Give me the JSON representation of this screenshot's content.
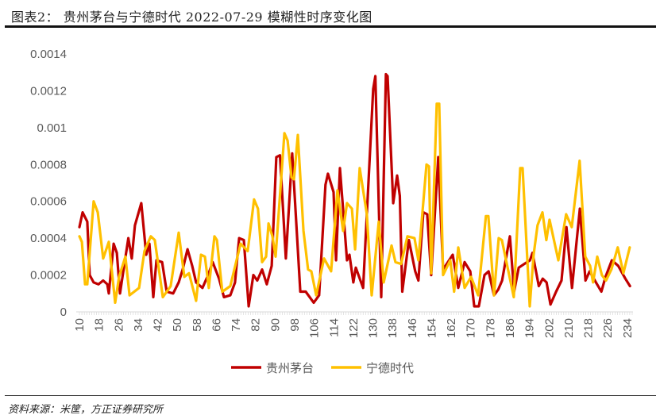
{
  "title": "图表2：  贵州茅台与宁德时代 2022-07-29 模糊性时序变化图",
  "source": "资料来源：米筐，方正证券研究所",
  "chart_data": {
    "type": "line",
    "title": "贵州茅台与宁德时代 2022-07-29 模糊性时序变化图",
    "xlabel": "",
    "ylabel": "",
    "xlim": [
      10,
      236
    ],
    "ylim": [
      0,
      0.0014
    ],
    "yticks": [
      "0",
      "0.0002",
      "0.0004",
      "0.0006",
      "0.0008",
      "0.001",
      "0.0012",
      "0.0014"
    ],
    "yticks_values": [
      0,
      0.0002,
      0.0004,
      0.0006,
      0.0008,
      0.001,
      0.0012,
      0.0014
    ],
    "xticks": [
      10,
      18,
      26,
      34,
      42,
      50,
      58,
      66,
      74,
      82,
      90,
      98,
      106,
      114,
      122,
      130,
      138,
      146,
      154,
      162,
      170,
      178,
      186,
      194,
      202,
      210,
      218,
      226,
      234
    ],
    "grid": false,
    "legend_position": "bottom",
    "series": [
      {
        "name": "贵州茅台",
        "color": "#C00000",
        "points": [
          [
            10,
            0.00046
          ],
          [
            11.3,
            0.00054
          ],
          [
            13.2,
            0.00049
          ],
          [
            14.2,
            0.0002
          ],
          [
            15.8,
            0.00016
          ],
          [
            17.8,
            0.00015
          ],
          [
            19.7,
            0.00017
          ],
          [
            21.4,
            0.00015
          ],
          [
            22,
            0.0001
          ],
          [
            24,
            0.00037
          ],
          [
            25.3,
            0.00032
          ],
          [
            26.6,
            0.0001
          ],
          [
            28.5,
            0.00027
          ],
          [
            30,
            0.0004
          ],
          [
            31.4,
            0.00029
          ],
          [
            32.7,
            0.00047
          ],
          [
            35.3,
            0.00059
          ],
          [
            37.3,
            0.00031
          ],
          [
            38.6,
            0.00037
          ],
          [
            40.2,
            8e-05
          ],
          [
            41.5,
            0.00028
          ],
          [
            43.8,
            0.00027
          ],
          [
            45.7,
            0.00011
          ],
          [
            48.3,
            0.0001
          ],
          [
            50.6,
            0.00016
          ],
          [
            52.2,
            0.00023
          ],
          [
            54.2,
            0.00034
          ],
          [
            56.1,
            0.00025
          ],
          [
            57.7,
            0.00016
          ],
          [
            60.3,
            0.00013
          ],
          [
            62.6,
            0.0002
          ],
          [
            64.5,
            0.00027
          ],
          [
            67.1,
            0.00018
          ],
          [
            69.1,
            8e-05
          ],
          [
            71.7,
            9e-05
          ],
          [
            73.6,
            0.00016
          ],
          [
            75.3,
            0.0004
          ],
          [
            77.2,
            0.00039
          ],
          [
            79.2,
            3e-05
          ],
          [
            81.1,
            0.0002
          ],
          [
            82.7,
            0.00017
          ],
          [
            84.7,
            0.00023
          ],
          [
            86.6,
            0.00015
          ],
          [
            88.6,
            0.00025
          ],
          [
            90.5,
            0.00084
          ],
          [
            92,
            0.00085
          ],
          [
            94.4,
            0.00029
          ],
          [
            97,
            0.00086
          ],
          [
            100.3,
            0.00011
          ],
          [
            102.5,
            0.00011
          ],
          [
            105.8,
            5e-05
          ],
          [
            108,
            9e-05
          ],
          [
            110.6,
            0.00069
          ],
          [
            111.6,
            0.00075
          ],
          [
            113.9,
            0.00065
          ],
          [
            114.9,
            0.00028
          ],
          [
            116.5,
            0.00078
          ],
          [
            119.4,
            0.00028
          ],
          [
            120.4,
            0.00031
          ],
          [
            122,
            0.00016
          ],
          [
            123,
            0.00024
          ],
          [
            126,
            0.00013
          ],
          [
            130.1,
            0.00121
          ],
          [
            131,
            0.00128
          ],
          [
            133.4,
            8e-05
          ],
          [
            135.3,
            0.00129
          ],
          [
            136,
            0.00128
          ],
          [
            138.3,
            0.00059
          ],
          [
            139.9,
            0.00074
          ],
          [
            141,
            0.00063
          ],
          [
            142,
            0.00011
          ],
          [
            144.7,
            0.00039
          ],
          [
            147.3,
            0.00022
          ],
          [
            148.6,
            0.00017
          ],
          [
            150.6,
            0.00054
          ],
          [
            152.2,
            0.00053
          ],
          [
            153.8,
            0.0002
          ],
          [
            156.7,
            0.00084
          ],
          [
            158.7,
            0.00023
          ],
          [
            162.6,
            0.00031
          ],
          [
            164.9,
            0.00013
          ],
          [
            167.5,
            0.00027
          ],
          [
            169.8,
            0.00022
          ],
          [
            171.4,
            3e-05
          ],
          [
            173.3,
            3e-05
          ],
          [
            175.6,
            0.0002
          ],
          [
            177.3,
            0.00022
          ],
          [
            179.5,
            9e-05
          ],
          [
            181.2,
            0.00012
          ],
          [
            182.8,
            0.00017
          ],
          [
            186,
            0.00041
          ],
          [
            187.7,
            0.00011
          ],
          [
            189.6,
            0.00024
          ],
          [
            191.9,
            0.00026
          ],
          [
            194.2,
            0.00028
          ],
          [
            195.2,
            0.00032
          ],
          [
            197.8,
            0.00014
          ],
          [
            199.4,
            0.00018
          ],
          [
            201,
            0.00016
          ],
          [
            202.6,
            4e-05
          ],
          [
            204.9,
            0.00011
          ],
          [
            207.1,
            0.00017
          ],
          [
            209.1,
            0.00046
          ],
          [
            211.4,
            0.00013
          ],
          [
            214.6,
            0.00056
          ],
          [
            216.9,
            0.00017
          ],
          [
            218.6,
            0.00022
          ],
          [
            221.2,
            0.00016
          ],
          [
            223.4,
            0.00011
          ],
          [
            225.1,
            0.00019
          ],
          [
            227.7,
            0.00028
          ],
          [
            230.3,
            0.00025
          ],
          [
            233.2,
            0.00018
          ],
          [
            235.1,
            0.00014
          ]
        ]
      },
      {
        "name": "宁德时代",
        "color": "#FFC000",
        "points": [
          [
            10,
            0.00041
          ],
          [
            11,
            0.00038
          ],
          [
            12.3,
            0.00015
          ],
          [
            13.2,
            0.00015
          ],
          [
            15.8,
            0.0006
          ],
          [
            17.5,
            0.00054
          ],
          [
            19.7,
            0.00029
          ],
          [
            22,
            0.00038
          ],
          [
            24.6,
            5e-05
          ],
          [
            26.2,
            0.00019
          ],
          [
            28.8,
            0.0003
          ],
          [
            30.5,
            9e-05
          ],
          [
            34.4,
            0.00013
          ],
          [
            36.6,
            0.00033
          ],
          [
            39.2,
            0.00041
          ],
          [
            40.8,
            0.00039
          ],
          [
            44.1,
            8e-05
          ],
          [
            47.3,
            0.00014
          ],
          [
            50.6,
            0.00043
          ],
          [
            52.9,
            0.00019
          ],
          [
            54.8,
            0.00021
          ],
          [
            57.7,
            6e-05
          ],
          [
            59.7,
            0.00031
          ],
          [
            61.3,
            0.0003
          ],
          [
            62.9,
            0.00013
          ],
          [
            65.2,
            0.00041
          ],
          [
            66.2,
            0.00039
          ],
          [
            68.4,
            0.00011
          ],
          [
            71.7,
            0.00014
          ],
          [
            75.9,
            0.00037
          ],
          [
            78.8,
            0.00033
          ],
          [
            81.4,
            0.00061
          ],
          [
            83,
            0.00056
          ],
          [
            84.7,
            0.00027
          ],
          [
            86.3,
            0.0003
          ],
          [
            87.3,
            0.00048
          ],
          [
            88.9,
            0.00041
          ],
          [
            90.2,
            0.0003
          ],
          [
            93.8,
            0.00097
          ],
          [
            95.1,
            0.00093
          ],
          [
            96.7,
            0.00073
          ],
          [
            97.7,
            0.00072
          ],
          [
            99.3,
            0.00096
          ],
          [
            101.6,
            0.00044
          ],
          [
            103.5,
            0.00023
          ],
          [
            104.8,
            0.00022
          ],
          [
            106.8,
            9e-05
          ],
          [
            110,
            0.00029
          ],
          [
            112.9,
            0.00022
          ],
          [
            115.5,
            0.00066
          ],
          [
            117.8,
            0.00044
          ],
          [
            119.4,
            0.00059
          ],
          [
            121.4,
            0.00056
          ],
          [
            122.7,
            0.00034
          ],
          [
            124.6,
            0.00078
          ],
          [
            127.5,
            0.00053
          ],
          [
            129.5,
            9e-05
          ],
          [
            132.4,
            0.00049
          ],
          [
            134.4,
            0.00016
          ],
          [
            137.6,
            0.00036
          ],
          [
            139.2,
            0.00027
          ],
          [
            141.5,
            0.00026
          ],
          [
            144.1,
            0.00041
          ],
          [
            147,
            0.0004
          ],
          [
            148.6,
            0.00028
          ],
          [
            151.9,
            0.0008
          ],
          [
            152.9,
            0.00079
          ],
          [
            153.8,
            0.00021
          ],
          [
            156.1,
            0.00113
          ],
          [
            157.1,
            0.00113
          ],
          [
            158.7,
            0.0002
          ],
          [
            161.6,
            0.00028
          ],
          [
            163.2,
            0.00011
          ],
          [
            164.9,
            0.00035
          ],
          [
            167.5,
            0.00013
          ],
          [
            170.1,
            0.00019
          ],
          [
            173,
            9e-05
          ],
          [
            176.2,
            0.00052
          ],
          [
            177.2,
            0.00052
          ],
          [
            179.5,
            9e-05
          ],
          [
            181.4,
            0.0004
          ],
          [
            182.7,
            0.00039
          ],
          [
            187.6,
            8e-05
          ],
          [
            190.2,
            0.00078
          ],
          [
            191.2,
            0.00078
          ],
          [
            194.1,
            3e-05
          ],
          [
            195.7,
            0.00031
          ],
          [
            197.3,
            0.00047
          ],
          [
            199.3,
            0.00054
          ],
          [
            200.9,
            0.00039
          ],
          [
            202.2,
            0.0005
          ],
          [
            205.8,
            0.00028
          ],
          [
            209,
            0.00053
          ],
          [
            211.3,
            0.00046
          ],
          [
            214.5,
            0.00082
          ],
          [
            216.8,
            0.0003
          ],
          [
            218.8,
            0.00025
          ],
          [
            220,
            0.00016
          ],
          [
            221.7,
            0.0003
          ],
          [
            223.6,
            0.0002
          ],
          [
            225.3,
            0.00017
          ],
          [
            227.5,
            0.00023
          ],
          [
            230.1,
            0.00035
          ],
          [
            232.4,
            0.00021
          ],
          [
            235,
            0.00035
          ]
        ]
      }
    ]
  }
}
